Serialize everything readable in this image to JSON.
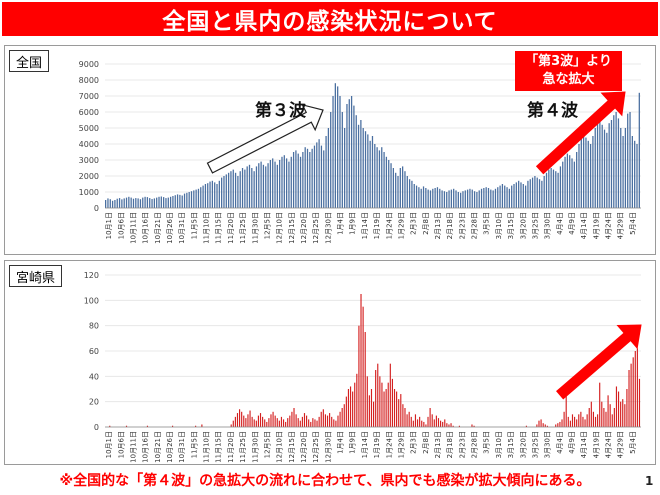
{
  "title": "全国と県内の感染状況について",
  "footnote": "※全国的な「第４波」の急拡大の流れに合わせて、県内でも感染が拡大傾向にある。",
  "page_number": "1",
  "colors": {
    "accent": "#ff0000",
    "national_bar": "#4a6fa0",
    "miyazaki_bar": "#d42020"
  },
  "national": {
    "label": "全国",
    "wave3_label": "第３波",
    "wave4_label": "第４波",
    "callout_line1": "「第3波」より",
    "callout_line2": "急な拡大"
  },
  "miyazaki": {
    "label": "宮崎県"
  },
  "chart_data": [
    {
      "type": "bar",
      "name": "全国",
      "ylim": [
        0,
        9000
      ],
      "yticks": [
        0,
        1000,
        2000,
        3000,
        4000,
        5000,
        6000,
        7000,
        8000,
        9000
      ],
      "xtick_labels": [
        "10月1日",
        "10月6日",
        "10月11日",
        "10月16日",
        "10月21日",
        "10月26日",
        "10月31日",
        "11月5日",
        "11月10日",
        "11月15日",
        "11月20日",
        "11月25日",
        "11月30日",
        "12月5日",
        "12月10日",
        "12月15日",
        "12月20日",
        "12月25日",
        "12月30日",
        "1月4日",
        "1月9日",
        "1月14日",
        "1月19日",
        "1月24日",
        "1月29日",
        "2月3日",
        "2月8日",
        "2月13日",
        "2月18日",
        "2月23日",
        "2月28日",
        "3月5日",
        "3月10日",
        "3月15日",
        "3月20日",
        "3月25日",
        "3月30日",
        "4月4日",
        "4月9日",
        "4月14日",
        "4月19日",
        "4月24日",
        "4月29日",
        "5月4日"
      ],
      "values": [
        500,
        600,
        550,
        450,
        500,
        580,
        620,
        540,
        600,
        650,
        700,
        650,
        580,
        620,
        600,
        550,
        650,
        700,
        680,
        620,
        560,
        600,
        650,
        700,
        720,
        680,
        620,
        650,
        700,
        750,
        800,
        850,
        820,
        780,
        900,
        950,
        1000,
        1050,
        1100,
        1150,
        1200,
        1300,
        1400,
        1500,
        1550,
        1650,
        1700,
        1600,
        1500,
        1700,
        1900,
        2000,
        2100,
        2200,
        2300,
        2400,
        2200,
        2000,
        2300,
        2500,
        2400,
        2600,
        2700,
        2500,
        2300,
        2600,
        2800,
        2900,
        2700,
        2600,
        2800,
        3000,
        3100,
        2900,
        2700,
        3000,
        3200,
        3300,
        3100,
        2900,
        3200,
        3500,
        3600,
        3400,
        3200,
        3500,
        3800,
        3700,
        3500,
        3700,
        3900,
        4100,
        4300,
        3900,
        3600,
        4500,
        5000,
        6000,
        7000,
        7800,
        7600,
        7000,
        6000,
        5000,
        6500,
        6800,
        7000,
        6400,
        5800,
        5200,
        5500,
        5000,
        4800,
        4600,
        4200,
        4500,
        4000,
        3800,
        3600,
        3800,
        3500,
        3200,
        3000,
        2800,
        2500,
        2200,
        2000,
        2500,
        2600,
        2300,
        2000,
        1800,
        1700,
        1500,
        1400,
        1300,
        1200,
        1350,
        1250,
        1150,
        1100,
        1200,
        1250,
        1300,
        1200,
        1100,
        1050,
        1000,
        1100,
        1150,
        1200,
        1100,
        1000,
        950,
        1050,
        1100,
        1150,
        1200,
        1150,
        1050,
        1000,
        1100,
        1200,
        1250,
        1300,
        1250,
        1150,
        1100,
        1200,
        1300,
        1400,
        1500,
        1400,
        1300,
        1200,
        1400,
        1500,
        1600,
        1700,
        1600,
        1500,
        1400,
        1700,
        1800,
        1900,
        2000,
        1900,
        1800,
        1700,
        2000,
        2200,
        2400,
        2500,
        2400,
        2300,
        2200,
        2600,
        2900,
        3200,
        3400,
        3300,
        3100,
        2900,
        3500,
        4000,
        4400,
        4600,
        4400,
        4200,
        4000,
        4500,
        5000,
        5300,
        5500,
        5200,
        4900,
        4700,
        5300,
        5500,
        5800,
        6000,
        5600,
        5000,
        4500,
        5000,
        5900,
        6000,
        4500,
        4200,
        4000,
        7200
      ]
    },
    {
      "type": "bar",
      "name": "宮崎県",
      "ylim": [
        0,
        120
      ],
      "yticks": [
        0,
        20,
        40,
        60,
        80,
        100,
        120
      ],
      "xtick_labels": [
        "10月1日",
        "10月6日",
        "10月11日",
        "10月16日",
        "10月21日",
        "10月26日",
        "10月31日",
        "11月5日",
        "11月10日",
        "11月15日",
        "11月20日",
        "11月25日",
        "11月30日",
        "12月5日",
        "12月10日",
        "12月15日",
        "12月20日",
        "12月25日",
        "12月30日",
        "1月4日",
        "1月9日",
        "1月14日",
        "1月19日",
        "1月24日",
        "1月29日",
        "2月3日",
        "2月8日",
        "2月13日",
        "2月18日",
        "2月23日",
        "2月28日",
        "3月5日",
        "3月10日",
        "3月15日",
        "3月20日",
        "3月25日",
        "3月30日",
        "4月4日",
        "4月9日",
        "4月14日",
        "4月19日",
        "4月24日",
        "4月29日",
        "5月4日"
      ],
      "values": [
        0,
        0,
        1,
        0,
        0,
        0,
        0,
        0,
        0,
        0,
        1,
        0,
        0,
        0,
        0,
        0,
        0,
        0,
        0,
        0,
        1,
        0,
        0,
        0,
        0,
        0,
        0,
        0,
        0,
        0,
        0,
        0,
        1,
        0,
        0,
        0,
        0,
        0,
        0,
        0,
        0,
        0,
        0,
        1,
        0,
        0,
        2,
        0,
        0,
        0,
        0,
        0,
        0,
        0,
        0,
        0,
        0,
        0,
        0,
        0,
        2,
        5,
        8,
        11,
        14,
        12,
        9,
        7,
        10,
        13,
        8,
        6,
        5,
        9,
        11,
        8,
        6,
        4,
        7,
        10,
        12,
        9,
        7,
        5,
        8,
        6,
        4,
        7,
        9,
        12,
        15,
        10,
        7,
        5,
        8,
        11,
        9,
        6,
        4,
        7,
        6,
        5,
        8,
        12,
        14,
        10,
        9,
        11,
        8,
        6,
        5,
        9,
        12,
        15,
        18,
        24,
        30,
        32,
        28,
        35,
        42,
        80,
        105,
        95,
        75,
        40,
        25,
        30,
        20,
        45,
        50,
        40,
        35,
        28,
        30,
        35,
        50,
        38,
        30,
        28,
        22,
        26,
        18,
        15,
        10,
        12,
        8,
        5,
        10,
        6,
        8,
        5,
        4,
        2,
        8,
        15,
        10,
        6,
        9,
        7,
        5,
        4,
        6,
        3,
        2,
        3,
        1,
        0,
        0,
        1,
        0,
        0,
        0,
        0,
        0,
        2,
        1,
        0,
        0,
        0,
        0,
        0,
        0,
        0,
        0,
        0,
        0,
        0,
        0,
        0,
        0,
        0,
        0,
        0,
        0,
        0,
        0,
        0,
        0,
        0,
        0,
        1,
        0,
        0,
        0,
        0,
        2,
        5,
        6,
        3,
        2,
        1,
        0,
        0,
        0,
        2,
        3,
        4,
        6,
        12,
        25,
        8,
        5,
        10,
        8,
        6,
        10,
        12,
        8,
        6,
        10,
        15,
        20,
        12,
        8,
        10,
        35,
        20,
        15,
        12,
        25,
        18,
        10,
        15,
        32,
        28,
        20,
        22,
        18,
        30,
        45,
        50,
        55,
        60,
        62,
        38
      ]
    }
  ]
}
